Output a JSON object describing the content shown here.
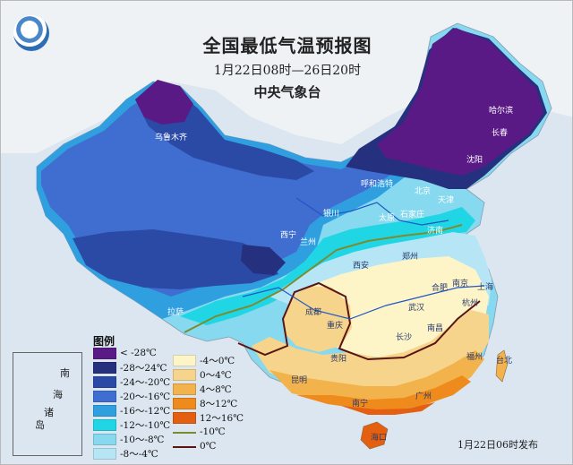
{
  "title": "全国最低气温预报图",
  "period": "1月22日08时—26日20时",
  "issuer": "中央气象台",
  "release": "1月22日06时发布",
  "legend": {
    "title": "图例",
    "items": [
      {
        "label": "< -28℃",
        "color": "#5a1a86"
      },
      {
        "label": "-28～24℃",
        "color": "#25307f"
      },
      {
        "label": "-24～-20℃",
        "color": "#2a4aa6"
      },
      {
        "label": "-20～-16℃",
        "color": "#3f6ed0"
      },
      {
        "label": "-16～-12℃",
        "color": "#2f9fe0"
      },
      {
        "label": "-12～-10℃",
        "color": "#20d6e4"
      },
      {
        "label": "-10～-8℃",
        "color": "#86d9ee"
      },
      {
        "label": "-8～-4℃",
        "color": "#b6e6f5"
      },
      {
        "label": "-4～0℃",
        "color": "#fdf4c8"
      },
      {
        "label": "0～4℃",
        "color": "#f6d48b"
      },
      {
        "label": "4～8℃",
        "color": "#f2b24c"
      },
      {
        "label": "8～12℃",
        "color": "#ef8a1c"
      },
      {
        "label": "12～16℃",
        "color": "#e45f10"
      }
    ],
    "lines": [
      {
        "label": "-10℃",
        "color": "#7d8b2e"
      },
      {
        "label": "0℃",
        "color": "#5a1414"
      }
    ]
  },
  "inset_labels": [
    "南",
    "海",
    "诸",
    "岛"
  ],
  "cities": [
    "乌鲁木齐",
    "哈尔滨",
    "长春",
    "沈阳",
    "呼和浩特",
    "北京",
    "天津",
    "太原",
    "石家庄",
    "济南",
    "银川",
    "西宁",
    "兰州",
    "西安",
    "郑州",
    "合肥",
    "南京",
    "上海",
    "杭州",
    "武汉",
    "成都",
    "重庆",
    "拉萨",
    "贵阳",
    "长沙",
    "南昌",
    "福州",
    "台北",
    "昆明",
    "南宁",
    "广州",
    "海口",
    "沈阳"
  ]
}
